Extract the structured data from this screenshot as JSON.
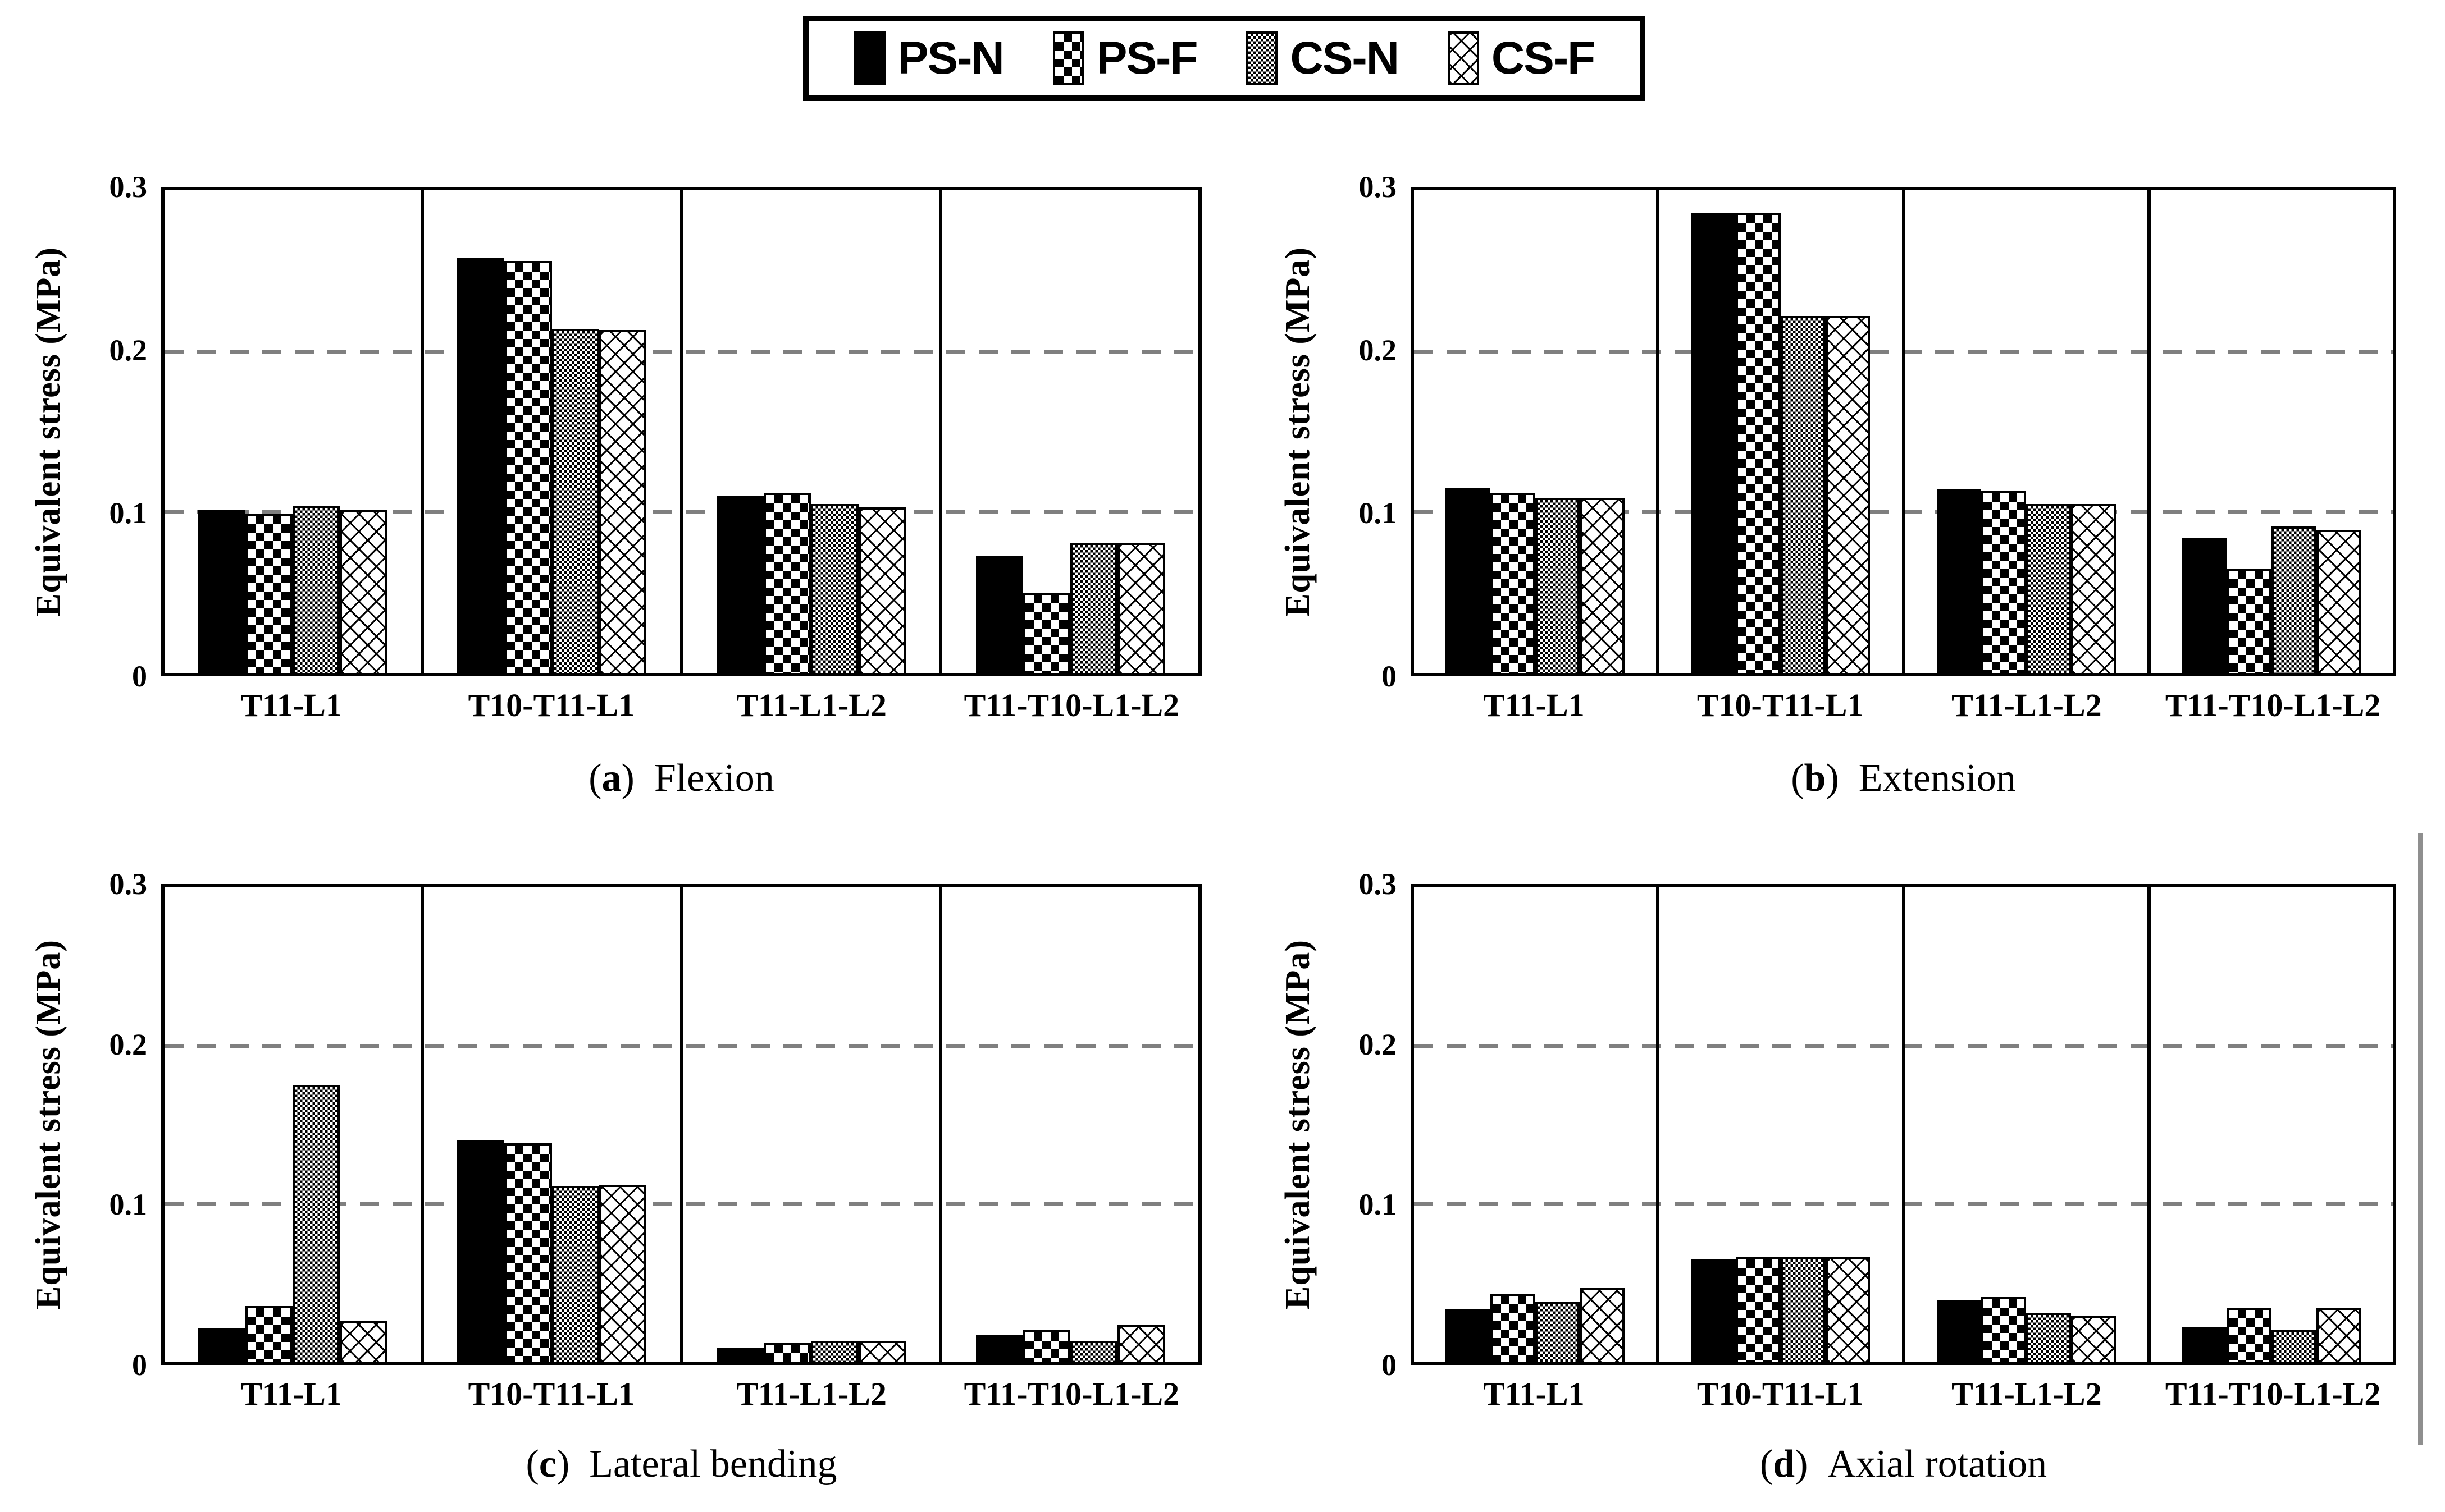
{
  "figure": {
    "y_axis_label": "Equivalent stress (MPa)",
    "y_ticks": [
      "0",
      "0.1",
      "0.2",
      "0.3"
    ],
    "categories": [
      "T11-L1",
      "T10-T11-L1",
      "T11-L1-L2",
      "T11-T10-L1-L2"
    ],
    "colors": {
      "bar_fill": "#000000",
      "frame": "#000000",
      "gridline_gray": "#7f7f7f",
      "background": "#ffffff"
    }
  },
  "legend": {
    "items": [
      {
        "label": "PS-N",
        "pattern": "ps-n",
        "swatch": "solid-black"
      },
      {
        "label": "PS-F",
        "pattern": "ps-f",
        "swatch": "checkerboard"
      },
      {
        "label": "CS-N",
        "pattern": "cs-n",
        "swatch": "fine-mesh-gray"
      },
      {
        "label": "CS-F",
        "pattern": "cs-f",
        "swatch": "diamond-crosshatch"
      }
    ]
  },
  "chart_data": [
    {
      "type": "bar",
      "panel": "a",
      "caption": {
        "open": "(",
        "letter": "a",
        "close": ") ",
        "text": "Flexion"
      },
      "title": "Flexion",
      "xlabel": "",
      "ylabel": "Equivalent stress (MPa)",
      "ylim": [
        0,
        0.3
      ],
      "gridlines": [
        0.1,
        0.2
      ],
      "grid": "dashed-horizontal",
      "legend_position": "shared-top-center",
      "categories": [
        "T11-L1",
        "T10-T11-L1",
        "T11-L1-L2",
        "T11-T10-L1-L2"
      ],
      "series": [
        {
          "name": "PS-N",
          "values": [
            0.101,
            0.258,
            0.11,
            0.073
          ]
        },
        {
          "name": "PS-F",
          "values": [
            0.099,
            0.256,
            0.112,
            0.05
          ]
        },
        {
          "name": "CS-N",
          "values": [
            0.104,
            0.214,
            0.105,
            0.081
          ]
        },
        {
          "name": "CS-F",
          "values": [
            0.101,
            0.213,
            0.103,
            0.081
          ]
        }
      ]
    },
    {
      "type": "bar",
      "panel": "b",
      "caption": {
        "open": "(",
        "letter": "b",
        "close": ") ",
        "text": "Extension"
      },
      "title": "Extension",
      "xlabel": "",
      "ylabel": "Equivalent stress (MPa)",
      "ylim": [
        0,
        0.3
      ],
      "gridlines": [
        0.1,
        0.2
      ],
      "grid": "dashed-horizontal",
      "legend_position": "shared-top-center",
      "categories": [
        "T11-L1",
        "T10-T11-L1",
        "T11-L1-L2",
        "T11-T10-L1-L2"
      ],
      "series": [
        {
          "name": "PS-N",
          "values": [
            0.115,
            0.286,
            0.114,
            0.084
          ]
        },
        {
          "name": "PS-F",
          "values": [
            0.112,
            0.286,
            0.113,
            0.065
          ]
        },
        {
          "name": "CS-N",
          "values": [
            0.109,
            0.222,
            0.105,
            0.091
          ]
        },
        {
          "name": "CS-F",
          "values": [
            0.109,
            0.222,
            0.105,
            0.089
          ]
        }
      ]
    },
    {
      "type": "bar",
      "panel": "c",
      "caption": {
        "open": "(",
        "letter": "c",
        "close": ") ",
        "text": "Lateral bending"
      },
      "title": "Lateral bending",
      "xlabel": "",
      "ylabel": "Equivalent stress (MPa)",
      "ylim": [
        0,
        0.3
      ],
      "gridlines": [
        0.1,
        0.2
      ],
      "grid": "dashed-horizontal",
      "legend_position": "shared-top-center",
      "categories": [
        "T11-L1",
        "T10-T11-L1",
        "T11-L1-L2",
        "T11-T10-L1-L2"
      ],
      "series": [
        {
          "name": "PS-N",
          "values": [
            0.021,
            0.14,
            0.009,
            0.017
          ]
        },
        {
          "name": "PS-F",
          "values": [
            0.035,
            0.138,
            0.012,
            0.02
          ]
        },
        {
          "name": "CS-N",
          "values": [
            0.175,
            0.111,
            0.013,
            0.013
          ]
        },
        {
          "name": "CS-F",
          "values": [
            0.026,
            0.112,
            0.013,
            0.023
          ]
        }
      ]
    },
    {
      "type": "bar",
      "panel": "d",
      "caption": {
        "open": "(",
        "letter": "d",
        "close": ") ",
        "text": "Axial rotation"
      },
      "title": "Axial rotation",
      "xlabel": "",
      "ylabel": "Equivalent stress (MPa)",
      "ylim": [
        0,
        0.3
      ],
      "gridlines": [
        0.1,
        0.2
      ],
      "grid": "dashed-horizontal",
      "legend_position": "shared-top-center",
      "categories": [
        "T11-L1",
        "T10-T11-L1",
        "T11-L1-L2",
        "T11-T10-L1-L2"
      ],
      "series": [
        {
          "name": "PS-N",
          "values": [
            0.033,
            0.065,
            0.039,
            0.022
          ]
        },
        {
          "name": "PS-F",
          "values": [
            0.043,
            0.066,
            0.041,
            0.034
          ]
        },
        {
          "name": "CS-N",
          "values": [
            0.038,
            0.066,
            0.031,
            0.02
          ]
        },
        {
          "name": "CS-F",
          "values": [
            0.047,
            0.066,
            0.029,
            0.034
          ]
        }
      ]
    }
  ]
}
